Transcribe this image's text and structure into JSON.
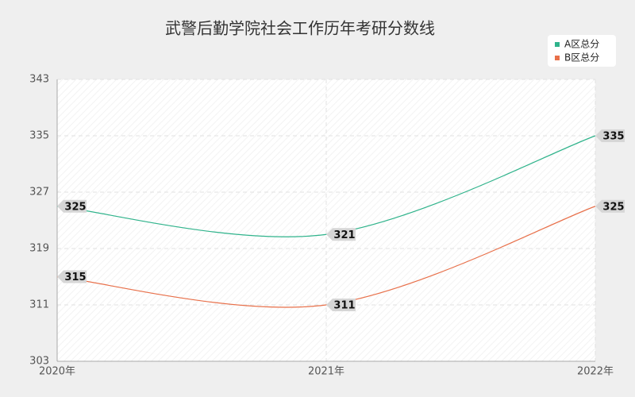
{
  "chart_data": {
    "type": "line",
    "title": "武警后勤学院社会工作历年考研分数线",
    "categories": [
      "2020年",
      "2021年",
      "2022年"
    ],
    "series": [
      {
        "name": "A区总分",
        "color": "#2fb38b",
        "values": [
          325,
          321,
          335
        ]
      },
      {
        "name": "B区总分",
        "color": "#e8704a",
        "values": [
          315,
          311,
          325
        ]
      }
    ],
    "ylim": [
      303,
      343
    ],
    "yticks": [
      303,
      311,
      319,
      327,
      335,
      343
    ],
    "grid": true,
    "legend": "top-right",
    "smooth": true
  }
}
